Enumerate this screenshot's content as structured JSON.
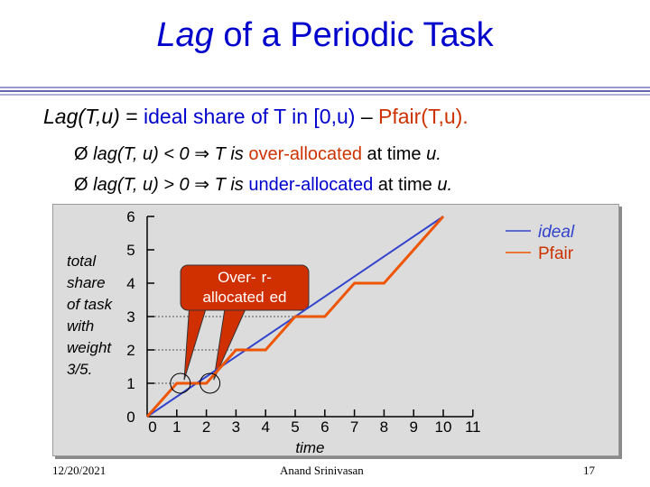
{
  "slide": {
    "title_italic": "Lag",
    "title_rest": " of a Periodic Task",
    "definition": {
      "lhs": "Lag(T,u)",
      "eq": " = ",
      "ideal": "ideal share of T in [0,u)",
      "minus": " – ",
      "pfair": "Pfair(T,u)."
    },
    "bullets": [
      {
        "symbol": "Ø",
        "expr": "lag(T, u) < 0",
        "arrow": "⇒",
        "subject": "T is",
        "term": "over-allocated",
        "suffix": "at time",
        "var": "u."
      },
      {
        "symbol": "Ø",
        "expr": "lag(T, u) > 0",
        "arrow": "⇒",
        "subject": "T is",
        "term": "under-allocated",
        "suffix": "at time",
        "var": "u."
      }
    ],
    "y_label_lines": [
      "total",
      "share",
      "of task",
      "with",
      "weight",
      "3/5."
    ],
    "callout": {
      "line1": "Over-",
      "line1_tail": "r-",
      "line2": "allocated",
      "line2_tail": "ed"
    },
    "footer": {
      "date": "12/20/2021",
      "author": "Anand Srinivasan",
      "page": "17"
    }
  },
  "colors": {
    "accent_blue": "#0000cc",
    "pfair_red": "#cc3300",
    "ideal_line": "#3344cc",
    "pfair_line": "#ee5500",
    "callout_fill": "#d03000"
  },
  "chart_data": {
    "type": "line",
    "xlabel": "time",
    "x_ticks": [
      "0",
      "1",
      "2",
      "3",
      "4",
      "5",
      "6",
      "7",
      "8",
      "9",
      "10",
      "11"
    ],
    "y_ticks": [
      "0",
      "1",
      "2",
      "3",
      "4",
      "5",
      "6"
    ],
    "xlim": [
      0,
      11
    ],
    "ylim": [
      0,
      6
    ],
    "legend_position": "top-right",
    "series": [
      {
        "name": "ideal",
        "color": "#3344cc",
        "points": [
          [
            0,
            0
          ],
          [
            10,
            6
          ]
        ]
      },
      {
        "name": "Pfair",
        "color": "#ee5500",
        "points": [
          [
            0,
            0
          ],
          [
            1,
            1
          ],
          [
            2,
            1
          ],
          [
            3,
            2
          ],
          [
            4,
            2
          ],
          [
            5,
            3
          ],
          [
            6,
            3
          ],
          [
            7,
            4
          ],
          [
            8,
            4
          ],
          [
            9,
            5
          ],
          [
            10,
            6
          ]
        ]
      }
    ],
    "highlights": [
      [
        1,
        1
      ],
      [
        2,
        1
      ]
    ]
  }
}
